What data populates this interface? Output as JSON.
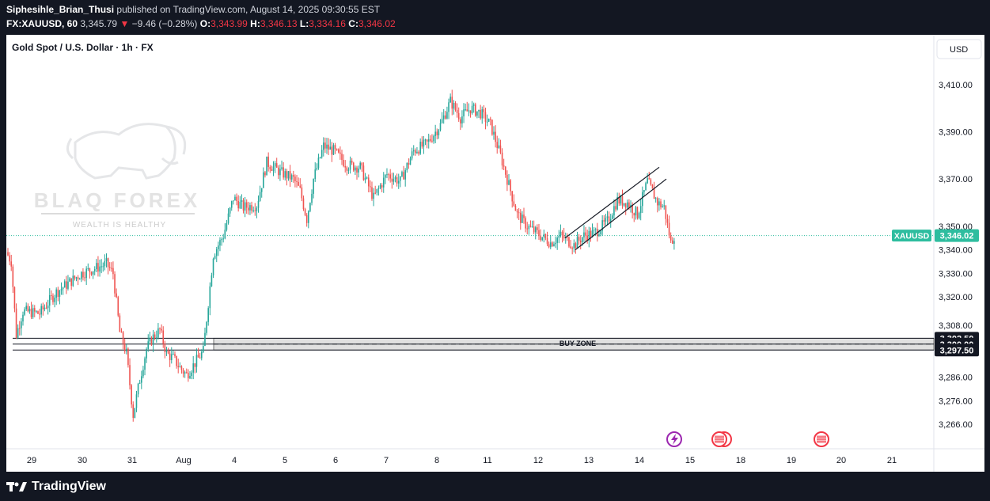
{
  "header": {
    "publisher": "Siphesihle_Brian_Thusi",
    "published_text": "published on TradingView.com, August 14, 2025 09:30:55 EST",
    "symbol_line": "FX:XAUUSD, 60",
    "last": "3,345.79",
    "change": "−9.46 (−0.28%)",
    "o_label": "O:",
    "o": "3,343.99",
    "h_label": "H:",
    "h": "3,346.13",
    "l_label": "L:",
    "l": "3,334.16",
    "c_label": "C:",
    "c": "3,346.02"
  },
  "chart_title": "Gold Spot / U.S. Dollar · 1h · FX",
  "currency_button": "USD",
  "watermark": {
    "brand": "BLAQ FOREX",
    "tagline": "WEALTH IS HEALTHY"
  },
  "footer": {
    "logo_text": "TradingView"
  },
  "colors": {
    "up": "#26a69a",
    "down": "#ef5350",
    "accent": "#2ebd9f",
    "zone": "#d5d5d5"
  },
  "chart_data": {
    "type": "candlestick",
    "symbol": "XAUUSD",
    "interval": "1h",
    "last_price": 3346.02,
    "last_price_label": "3,346.02",
    "symbol_tag": "XAUUSD",
    "ylim": [
      3259,
      3419
    ],
    "y_ticks": [
      3410,
      3390,
      3370,
      3350,
      3340,
      3330,
      3320,
      3308,
      3286,
      3276,
      3266
    ],
    "y_tick_labels": [
      "3,410.00",
      "3,390.00",
      "3,370.00",
      "3,350.00",
      "3,340.00",
      "3,330.00",
      "3,320.00",
      "3,308.00",
      "3,286.00",
      "3,276.00",
      "3,266.00"
    ],
    "x_ticks": [
      "29",
      "30",
      "31",
      "Aug",
      "4",
      "5",
      "6",
      "7",
      "8",
      "11",
      "12",
      "13",
      "14",
      "15",
      "18",
      "19",
      "20",
      "21"
    ],
    "price_path": [
      [
        0,
        3339
      ],
      [
        3,
        3335
      ],
      [
        6,
        3304
      ],
      [
        10,
        3314
      ],
      [
        20,
        3313
      ],
      [
        30,
        3322
      ],
      [
        45,
        3330
      ],
      [
        60,
        3334
      ],
      [
        64,
        3330
      ],
      [
        68,
        3305
      ],
      [
        72,
        3296
      ],
      [
        76,
        3270
      ],
      [
        80,
        3285
      ],
      [
        84,
        3298
      ],
      [
        88,
        3303
      ],
      [
        92,
        3306
      ],
      [
        96,
        3296
      ],
      [
        100,
        3294
      ],
      [
        104,
        3290
      ],
      [
        108,
        3287
      ],
      [
        112,
        3291
      ],
      [
        118,
        3297
      ],
      [
        124,
        3338
      ],
      [
        130,
        3346
      ],
      [
        136,
        3362
      ],
      [
        142,
        3358
      ],
      [
        150,
        3359
      ],
      [
        156,
        3377
      ],
      [
        164,
        3373
      ],
      [
        172,
        3370
      ],
      [
        176,
        3365
      ],
      [
        180,
        3353
      ],
      [
        184,
        3370
      ],
      [
        190,
        3384
      ],
      [
        196,
        3382
      ],
      [
        204,
        3376
      ],
      [
        212,
        3375
      ],
      [
        220,
        3362
      ],
      [
        228,
        3372
      ],
      [
        236,
        3369
      ],
      [
        244,
        3382
      ],
      [
        252,
        3385
      ],
      [
        260,
        3393
      ],
      [
        266,
        3403
      ],
      [
        272,
        3396
      ],
      [
        278,
        3400
      ],
      [
        284,
        3398
      ],
      [
        290,
        3393
      ],
      [
        296,
        3380
      ],
      [
        300,
        3370
      ],
      [
        306,
        3355
      ],
      [
        312,
        3350
      ],
      [
        320,
        3346
      ],
      [
        326,
        3343
      ],
      [
        332,
        3346
      ],
      [
        340,
        3342
      ],
      [
        346,
        3346
      ],
      [
        352,
        3347
      ],
      [
        360,
        3352
      ],
      [
        366,
        3361
      ],
      [
        372,
        3360
      ],
      [
        378,
        3355
      ],
      [
        384,
        3369
      ],
      [
        390,
        3360
      ],
      [
        394,
        3358
      ],
      [
        398,
        3343
      ],
      [
        400,
        3346
      ]
    ],
    "rising_channel": {
      "lower": [
        [
          3340,
          3305
        ],
        [
          3370,
          3345
        ]
      ],
      "upper": [
        [
          3345,
          3330
        ],
        [
          3375,
          3358
        ]
      ]
    },
    "horizontal_levels": [
      {
        "value": 3302.5,
        "label": "3,302.50"
      },
      {
        "value": 3300.0,
        "label": "3,300.00"
      },
      {
        "value": 3297.5,
        "label": "3,297.50"
      }
    ],
    "zone": {
      "label": "BUY ZONE",
      "top": 3302.5,
      "bottom": 3297.5
    }
  }
}
